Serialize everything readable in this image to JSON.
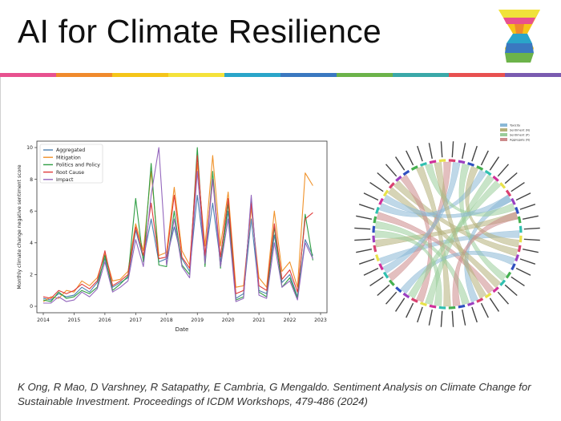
{
  "slide": {
    "title": "AI for Climate Resilience",
    "citation": "K Ong, R Mao, D Varshney, R Satapathy, E Cambria, G Mengaldo. Sentiment Analysis on Climate Change for Sustainable Investment. Proceedings of ICDM Workshops, 479-486 (2024)",
    "rainbow_colors": [
      "#e8518f",
      "#f08a2c",
      "#f5c518",
      "#f5e23a",
      "#2aa5c9",
      "#3a78c0",
      "#6cb34a",
      "#3aa8a8",
      "#e85050",
      "#7a5bb0"
    ]
  },
  "chart_data": [
    {
      "type": "line",
      "xlabel": "Date",
      "ylabel": "Monthly climate change negative sentiment score",
      "xlim": [
        2014,
        2023
      ],
      "ylim": [
        0,
        10
      ],
      "xticks": [
        "2014",
        "2015",
        "2016",
        "2017",
        "2018",
        "2019",
        "2020",
        "2021",
        "2022",
        "2023"
      ],
      "yticks": [
        "0",
        "2",
        "4",
        "6",
        "8",
        "10"
      ],
      "legend_position": "top-left",
      "x": [
        2014.0,
        2014.25,
        2014.5,
        2014.75,
        2015.0,
        2015.25,
        2015.5,
        2015.75,
        2016.0,
        2016.25,
        2016.5,
        2016.75,
        2017.0,
        2017.25,
        2017.5,
        2017.75,
        2018.0,
        2018.25,
        2018.5,
        2018.75,
        2019.0,
        2019.25,
        2019.5,
        2019.75,
        2020.0,
        2020.25,
        2020.5,
        2020.75,
        2021.0,
        2021.25,
        2021.5,
        2021.75,
        2022.0,
        2022.25,
        2022.5,
        2022.75
      ],
      "series": [
        {
          "name": "Aggregated",
          "color": "#4c7fb0",
          "values": [
            0.5,
            0.4,
            0.8,
            0.6,
            0.7,
            1.2,
            0.9,
            1.5,
            3.0,
            1.2,
            1.5,
            1.8,
            4.8,
            3.0,
            5.5,
            2.8,
            3.0,
            5.0,
            3.0,
            2.2,
            7.0,
            3.0,
            6.5,
            2.8,
            6.0,
            0.5,
            0.8,
            5.5,
            1.0,
            0.8,
            4.5,
            1.5,
            2.0,
            0.6,
            4.2,
            3.2
          ]
        },
        {
          "name": "Mitigation",
          "color": "#f0922a",
          "values": [
            0.3,
            0.6,
            0.5,
            1.0,
            0.9,
            1.6,
            1.3,
            1.8,
            3.3,
            1.6,
            1.7,
            2.2,
            5.2,
            3.5,
            8.5,
            3.2,
            3.4,
            7.5,
            3.5,
            2.6,
            9.0,
            3.8,
            9.5,
            3.8,
            7.2,
            1.2,
            1.3,
            6.2,
            1.8,
            1.2,
            6.0,
            2.2,
            2.8,
            1.2,
            8.4,
            7.6
          ]
        },
        {
          "name": "Politics and Policy",
          "color": "#2f9e44",
          "values": [
            0.4,
            0.3,
            0.9,
            0.5,
            0.6,
            1.0,
            0.8,
            1.2,
            3.2,
            1.0,
            1.4,
            1.9,
            6.8,
            2.8,
            9.0,
            2.6,
            2.5,
            6.0,
            2.6,
            2.0,
            10.0,
            2.5,
            8.5,
            2.4,
            6.5,
            0.4,
            0.6,
            6.8,
            0.9,
            0.6,
            5.0,
            1.2,
            1.8,
            0.5,
            5.8,
            2.9
          ]
        },
        {
          "name": "Root Cause",
          "color": "#e03a3a",
          "values": [
            0.6,
            0.5,
            1.0,
            0.8,
            1.0,
            1.4,
            1.1,
            1.6,
            3.5,
            1.3,
            1.6,
            2.0,
            5.0,
            3.2,
            6.5,
            3.0,
            3.1,
            7.0,
            3.1,
            2.4,
            9.5,
            3.2,
            8.0,
            3.1,
            6.8,
            0.8,
            1.0,
            6.5,
            1.3,
            1.0,
            5.2,
            1.7,
            2.3,
            0.9,
            5.5,
            5.9
          ]
        },
        {
          "name": "Impact",
          "color": "#9467bd",
          "values": [
            0.2,
            0.2,
            0.6,
            0.3,
            0.4,
            0.9,
            0.6,
            1.1,
            2.8,
            0.9,
            1.2,
            1.6,
            4.2,
            2.5,
            7.0,
            10.0,
            2.6,
            5.5,
            2.5,
            1.8,
            8.5,
            2.7,
            8.0,
            2.5,
            5.5,
            0.3,
            0.5,
            7.0,
            0.7,
            0.5,
            4.0,
            1.2,
            1.6,
            0.4,
            4.0,
            3.0
          ]
        }
      ]
    },
    {
      "type": "chord",
      "legend_position": "top-right",
      "legend": [
        "Toxicity",
        "Sentiment (N)",
        "Sentiment (P)",
        "Aggregate (N)"
      ],
      "legend_colors": [
        "#8ab8d6",
        "#b5b07a",
        "#9acd9a",
        "#cc8b8b"
      ],
      "segment_colors": [
        "#e8e24a",
        "#d94070",
        "#9b3fc0",
        "#3050c0",
        "#45b050",
        "#30c0b0",
        "#d0309a"
      ]
    }
  ]
}
